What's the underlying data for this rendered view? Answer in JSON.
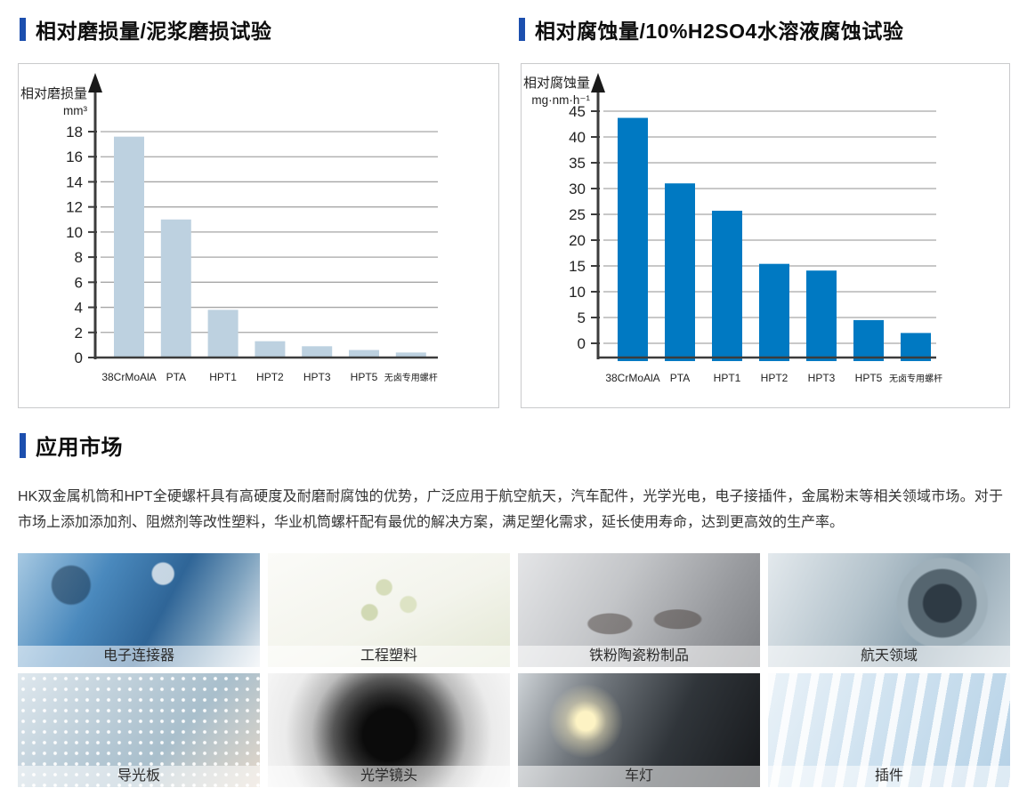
{
  "colors": {
    "accent_blue": "#1c4fae",
    "wear_bar": "#bdd1e0",
    "corrosion_bar": "#0079c2",
    "gridline": "#a6a6a6",
    "axis": "#3c3c3c"
  },
  "chart_data": [
    {
      "type": "bar",
      "title": "相对磨损量/泥浆磨损试验",
      "ylabel": "相对磨损量",
      "unit": "mm³",
      "xlabel": "",
      "categories": [
        "38CrMoAlA",
        "PTA",
        "HPT1",
        "HPT2",
        "HPT3",
        "HPT5",
        "无卤专用螺杆"
      ],
      "values": [
        17.6,
        11.0,
        3.8,
        1.3,
        0.9,
        0.6,
        0.4
      ],
      "ylim": [
        0,
        18
      ],
      "ytick_step": 2,
      "grid": true,
      "legend": "none",
      "bar_color": "#bdd1e0"
    },
    {
      "type": "bar",
      "title": "相对腐蚀量/10%H2SO4水溶液腐蚀试验",
      "ylabel": "相对腐蚀量",
      "unit": "mg·nm·h⁻¹",
      "xlabel": "",
      "categories": [
        "38CrMoAlA",
        "PTA",
        "HPT1",
        "HPT2",
        "HPT3",
        "HPT5",
        "无卤专用螺杆"
      ],
      "values": [
        43.7,
        31.0,
        25.7,
        15.4,
        14.1,
        4.5,
        2.0
      ],
      "ylim": [
        0,
        45
      ],
      "ytick_step": 5,
      "grid": true,
      "legend": "none",
      "bar_color": "#0079c2"
    }
  ],
  "applications": {
    "title": "应用市场",
    "paragraph": "HK双金属机筒和HPT全硬螺杆具有高硬度及耐磨耐腐蚀的优势，广泛应用于航空航天，汽车配件，光学光电，电子接插件，金属粉末等相关领域市场。对于市场上添加添加剂、阻燃剂等改性塑料，华业机筒螺杆配有最优的解决方案，满足塑化需求，延长使用寿命，达到更高效的生产率。",
    "tiles": [
      {
        "label": "电子连接器",
        "image": "circuit-board"
      },
      {
        "label": "工程塑料",
        "image": "plastic-pellets"
      },
      {
        "label": "铁粉陶瓷粉制品",
        "image": "glasses"
      },
      {
        "label": "航天领域",
        "image": "jet-engine"
      },
      {
        "label": "导光板",
        "image": "light-guide-plate"
      },
      {
        "label": "光学镜头",
        "image": "camera-lens"
      },
      {
        "label": "车灯",
        "image": "car-headlight"
      },
      {
        "label": "插件",
        "image": "connector"
      }
    ]
  }
}
